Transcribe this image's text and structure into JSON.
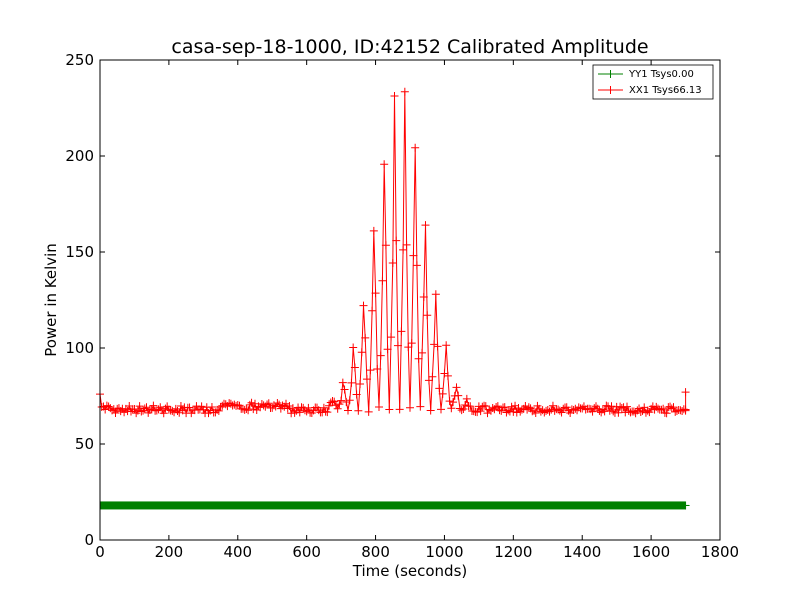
{
  "chart_data": {
    "type": "line",
    "title": "casa-sep-18-1000, ID:42152 Calibrated Amplitude",
    "xlabel": "Time (seconds)",
    "ylabel": "Power in Kelvin",
    "xlim": [
      0,
      1800
    ],
    "ylim": [
      0,
      250
    ],
    "x_ticks": [
      0,
      200,
      400,
      600,
      800,
      1000,
      1200,
      1400,
      1600,
      1800
    ],
    "y_ticks": [
      0,
      50,
      100,
      150,
      200,
      250
    ],
    "x_tick_labels": [
      "0",
      "200",
      "400",
      "600",
      "800",
      "1000",
      "1200",
      "1400",
      "1600",
      "1800"
    ],
    "y_tick_labels": [
      "0",
      "50",
      "100",
      "150",
      "200",
      "250"
    ],
    "grid": false,
    "legend_position": "top-right",
    "marker": "plus",
    "series": [
      {
        "name": "YY1 Tsys0.00",
        "color": "#008000",
        "x": [
          0,
          200,
          400,
          600,
          800,
          900,
          1000,
          1200,
          1400,
          1600,
          1700
        ],
        "values": [
          18,
          18,
          18,
          18,
          18,
          18,
          18,
          18,
          18,
          18,
          18
        ]
      },
      {
        "name": "XX1 Tsys66.13",
        "color": "#ff0000",
        "peak_time": 870,
        "peak_value": 239,
        "peak_width": 105,
        "baseline": 68,
        "x": [
          0,
          100,
          200,
          300,
          400,
          500,
          600,
          650,
          700,
          750,
          800,
          850,
          870,
          900,
          950,
          1000,
          1050,
          1100,
          1150,
          1200,
          1300,
          1400,
          1500,
          1600,
          1700
        ],
        "values": [
          69,
          68,
          68,
          69,
          70,
          69,
          69,
          80,
          105,
          148,
          196,
          232,
          239,
          230,
          200,
          150,
          104,
          82,
          72,
          69,
          68,
          68,
          68,
          68,
          77
        ]
      }
    ]
  }
}
